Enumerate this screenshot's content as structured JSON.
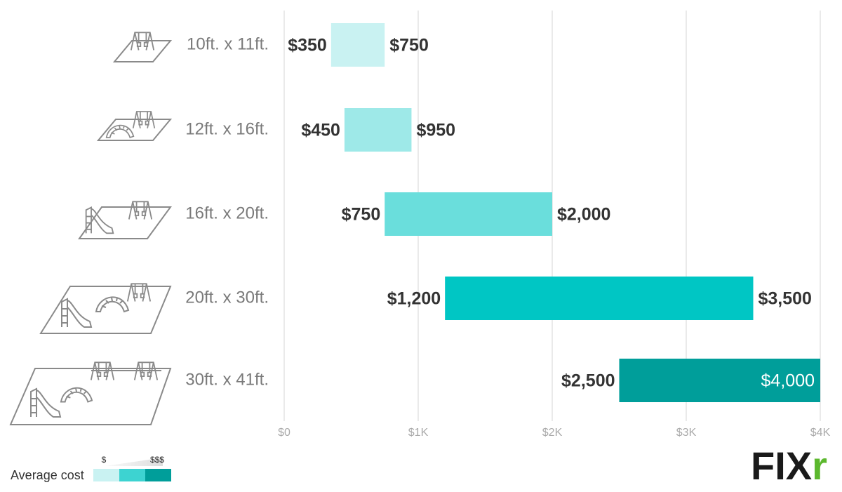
{
  "chart_data": {
    "type": "floating-bar",
    "categories": [
      "10ft. x 11ft.",
      "12ft. x 16ft.",
      "16ft. x 20ft.",
      "20ft. x 30ft.",
      "30ft. x 41ft."
    ],
    "values": [
      [
        350,
        750
      ],
      [
        450,
        950
      ],
      [
        750,
        2000
      ],
      [
        1200,
        3500
      ],
      [
        2500,
        4000
      ]
    ],
    "value_labels": [
      [
        "$350",
        "$750"
      ],
      [
        "$450",
        "$950"
      ],
      [
        "$750",
        "$2,000"
      ],
      [
        "$1,200",
        "$3,500"
      ],
      [
        "$2,500",
        "$4,000"
      ]
    ],
    "colors": [
      "#c9f2f2",
      "#9ee9e8",
      "#6adedc",
      "#00c6c4",
      "#009e9a"
    ],
    "xlim": [
      0,
      4000
    ],
    "xticks": [
      {
        "value": 0,
        "label": "$0"
      },
      {
        "value": 1000,
        "label": "$1K"
      },
      {
        "value": 2000,
        "label": "$2K"
      },
      {
        "value": 3000,
        "label": "$3K"
      },
      {
        "value": 4000,
        "label": "$4K"
      }
    ],
    "grid": true
  },
  "legend": {
    "title": "Average cost",
    "low_label": "$",
    "high_label": "$$$",
    "colors": [
      "#c9f2f2",
      "#3dd3d1",
      "#009e9a"
    ]
  },
  "logo": {
    "main": "FIX",
    "accent": "r"
  }
}
